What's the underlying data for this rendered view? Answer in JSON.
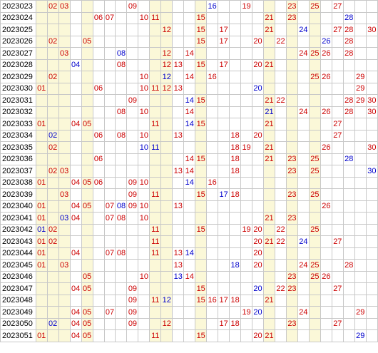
{
  "columns": [
    "01",
    "02",
    "03",
    "04",
    "05",
    "06",
    "07",
    "08",
    "09",
    "10",
    "11",
    "12",
    "13",
    "14",
    "15",
    "16",
    "17",
    "18",
    "19",
    "20",
    "21",
    "22",
    "23",
    "24",
    "25",
    "26",
    "27",
    "28",
    "29",
    "30"
  ],
  "shaded_columns": [
    1,
    2,
    3,
    5,
    11,
    12,
    15,
    21,
    23,
    25
  ],
  "colors": {
    "red_ball": "#cc0000",
    "blue_ball": "#0000cc",
    "band": "#fbf8d8",
    "grid": "#c8c8c8"
  },
  "rows": [
    {
      "period": "2023023",
      "red": [
        2,
        3,
        9,
        19,
        23,
        25,
        27
      ],
      "blue": [
        16
      ]
    },
    {
      "period": "2023024",
      "red": [
        6,
        7,
        10,
        11,
        15,
        21,
        23
      ],
      "blue": [
        28
      ]
    },
    {
      "period": "2023025",
      "red": [
        12,
        15,
        17,
        21,
        27,
        28,
        30
      ],
      "blue": [
        24
      ]
    },
    {
      "period": "2023026",
      "red": [
        2,
        5,
        15,
        17,
        20,
        22,
        28
      ],
      "blue": [
        26
      ]
    },
    {
      "period": "2023027",
      "red": [
        3,
        12,
        14,
        24,
        25,
        26,
        28
      ],
      "blue": [
        8
      ]
    },
    {
      "period": "2023028",
      "red": [
        8,
        12,
        13,
        15,
        17,
        20,
        21
      ],
      "blue": [
        4
      ]
    },
    {
      "period": "2023029",
      "red": [
        2,
        10,
        14,
        16,
        25,
        26,
        29
      ],
      "blue": [
        12
      ]
    },
    {
      "period": "2023030",
      "red": [
        1,
        6,
        10,
        11,
        12,
        13,
        29
      ],
      "blue": [
        20
      ]
    },
    {
      "period": "2023031",
      "red": [
        9,
        15,
        21,
        22,
        28,
        29,
        30
      ],
      "blue": [
        14
      ]
    },
    {
      "period": "2023032",
      "red": [
        8,
        10,
        14,
        24,
        26,
        28,
        30
      ],
      "blue": [
        21
      ]
    },
    {
      "period": "2023033",
      "red": [
        1,
        4,
        5,
        11,
        15,
        21,
        27
      ],
      "blue": [
        14
      ]
    },
    {
      "period": "2023034",
      "red": [
        6,
        8,
        10,
        13,
        18,
        20,
        27
      ],
      "blue": [
        2
      ]
    },
    {
      "period": "2023035",
      "red": [
        2,
        18,
        19,
        21,
        26,
        30
      ],
      "blue": [
        10,
        11
      ]
    },
    {
      "period": "2023036",
      "red": [
        6,
        14,
        15,
        18,
        21,
        23,
        25
      ],
      "blue": [
        28
      ]
    },
    {
      "period": "2023037",
      "red": [
        2,
        3,
        13,
        14,
        18,
        23,
        25
      ],
      "blue": [
        30
      ]
    },
    {
      "period": "2023038",
      "red": [
        1,
        4,
        5,
        6,
        9,
        10,
        16
      ],
      "blue": [
        14
      ]
    },
    {
      "period": "2023039",
      "red": [
        3,
        9,
        11,
        15,
        18,
        23,
        25
      ],
      "blue": [
        17
      ]
    },
    {
      "period": "2023040",
      "red": [
        1,
        4,
        5,
        7,
        9,
        10,
        13,
        26
      ],
      "blue": [
        8
      ]
    },
    {
      "period": "2023041",
      "red": [
        1,
        4,
        7,
        8,
        10,
        21,
        23
      ],
      "blue": [
        3
      ]
    },
    {
      "period": "2023042",
      "red": [
        2,
        11,
        15,
        19,
        20,
        22,
        25
      ],
      "blue": [
        1
      ]
    },
    {
      "period": "2023043",
      "red": [
        1,
        2,
        11,
        20,
        21,
        22,
        27
      ],
      "blue": [
        24
      ]
    },
    {
      "period": "2023044",
      "red": [
        1,
        4,
        7,
        8,
        11,
        13,
        20
      ],
      "blue": [
        14
      ]
    },
    {
      "period": "2023045",
      "red": [
        1,
        3,
        13,
        20,
        24,
        25,
        28
      ],
      "blue": [
        18
      ]
    },
    {
      "period": "2023046",
      "red": [
        5,
        10,
        14,
        23,
        25,
        26
      ],
      "blue": [
        13
      ]
    },
    {
      "period": "2023047",
      "red": [
        4,
        5,
        9,
        15,
        22,
        23,
        27
      ],
      "blue": [
        20
      ]
    },
    {
      "period": "2023048",
      "red": [
        9,
        11,
        15,
        16,
        17,
        18,
        21
      ],
      "blue": [
        12
      ]
    },
    {
      "period": "2023049",
      "red": [
        4,
        5,
        7,
        9,
        19,
        24,
        29
      ],
      "blue": [
        20
      ]
    },
    {
      "period": "2023050",
      "red": [
        4,
        5,
        9,
        12,
        17,
        18,
        23,
        27
      ],
      "blue": [
        2
      ]
    },
    {
      "period": "2023051",
      "red": [
        1,
        4,
        5,
        11,
        15,
        20,
        21
      ],
      "blue": [
        29
      ]
    }
  ]
}
